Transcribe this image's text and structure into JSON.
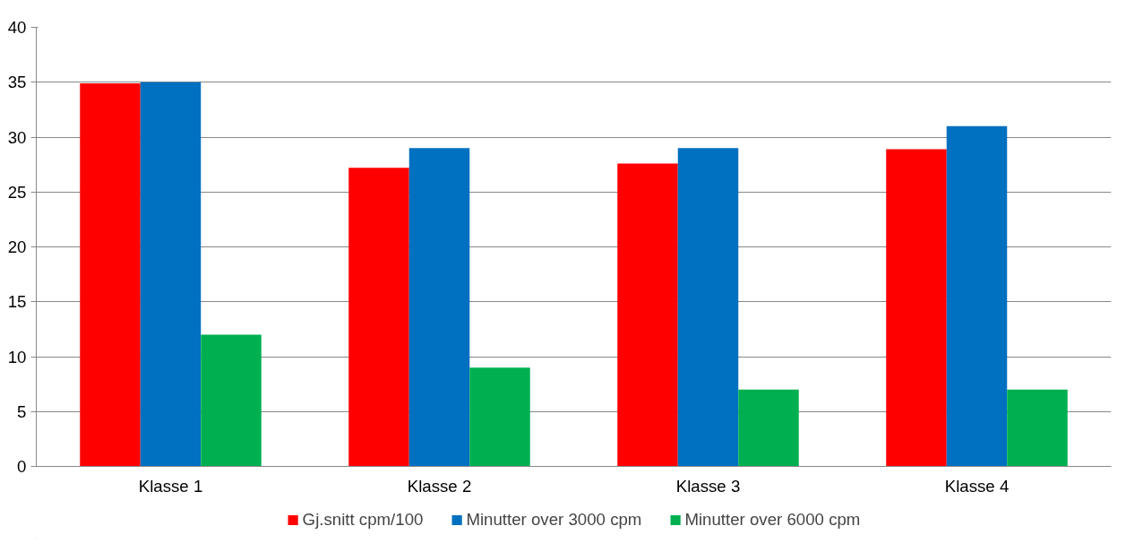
{
  "chart_data": {
    "type": "bar",
    "categories": [
      "Klasse 1",
      "Klasse 2",
      "Klasse 3",
      "Klasse 4"
    ],
    "series": [
      {
        "name": "Gj.snitt cpm/100",
        "color": "#ff0000",
        "values": [
          34.9,
          27.2,
          27.6,
          28.9
        ]
      },
      {
        "name": "Minutter over 3000 cpm",
        "color": "#0070c0",
        "values": [
          35,
          29,
          29,
          31
        ]
      },
      {
        "name": "Minutter over 6000 cpm",
        "color": "#00b050",
        "values": [
          12,
          9,
          7,
          7
        ]
      }
    ],
    "ylim": [
      0,
      40
    ],
    "yticks": [
      0,
      5,
      10,
      15,
      20,
      25,
      30,
      35,
      40
    ],
    "grid": "y",
    "legend": "bottom"
  }
}
